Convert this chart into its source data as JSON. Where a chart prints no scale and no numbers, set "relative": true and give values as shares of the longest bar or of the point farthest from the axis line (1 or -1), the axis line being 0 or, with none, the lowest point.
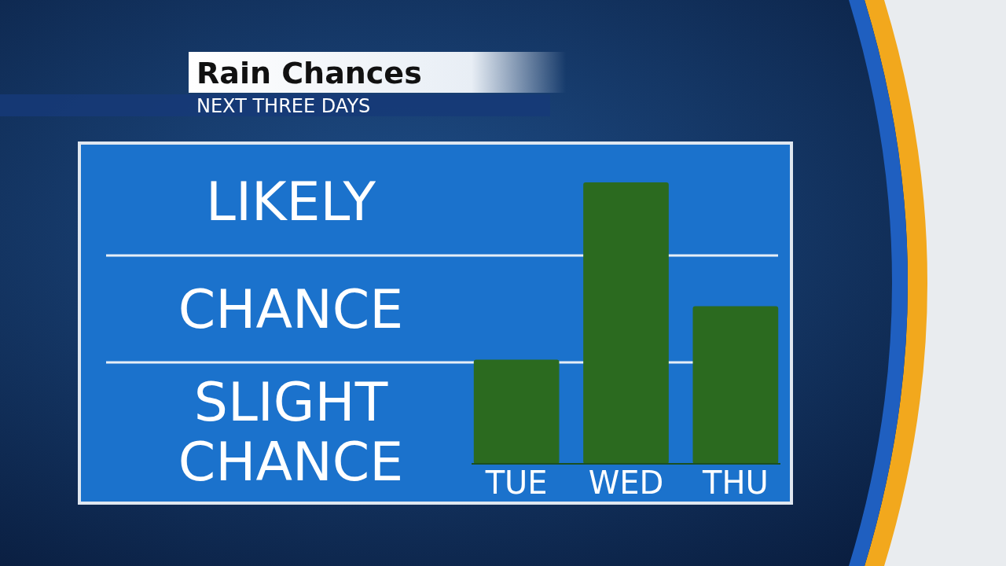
{
  "chart_data": {
    "type": "bar",
    "title": "Rain Chances",
    "subtitle": "NEXT THREE DAYS",
    "relative": true,
    "categories": [
      "TUE",
      "WED",
      "THU"
    ],
    "values": [
      0.37,
      1,
      0.56
    ],
    "color": "#2b6a1f",
    "ref_lines": [
      {
        "axis": "y",
        "value": 0.74,
        "color": "#e6eef7"
      },
      {
        "axis": "y",
        "value": 0.36,
        "color": "#e6eef7"
      }
    ],
    "annotations": [
      "LIKELY",
      "CHANCE",
      "SLIGHT CHANCE"
    ]
  }
}
